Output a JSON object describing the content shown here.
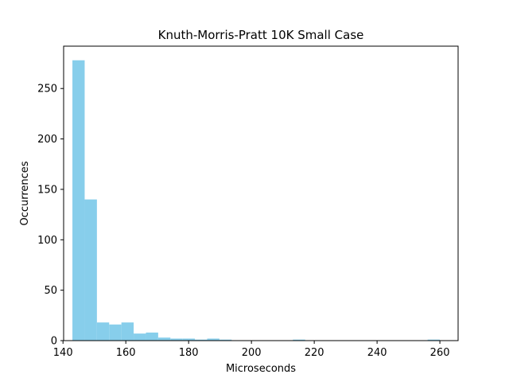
{
  "chart_data": {
    "type": "bar",
    "title": "Knuth-Morris-Pratt 10K Small Case",
    "xlabel": "Microseconds",
    "ylabel": "Occurrences",
    "xlim": [
      140.2,
      265.8
    ],
    "ylim": [
      0,
      292
    ],
    "xticks": [
      140,
      160,
      180,
      200,
      220,
      240,
      260
    ],
    "yticks": [
      0,
      50,
      100,
      150,
      200,
      250
    ],
    "grid": false,
    "bar_color": "#87CEEB",
    "bin_start": 143.0,
    "bin_width": 3.9,
    "values": [
      278,
      140,
      18,
      16,
      18,
      7,
      8,
      3,
      2,
      2,
      1,
      2,
      1,
      0,
      0,
      0,
      0,
      0,
      1,
      0,
      0,
      0,
      0,
      0,
      0,
      0,
      0,
      0,
      0,
      1
    ]
  }
}
